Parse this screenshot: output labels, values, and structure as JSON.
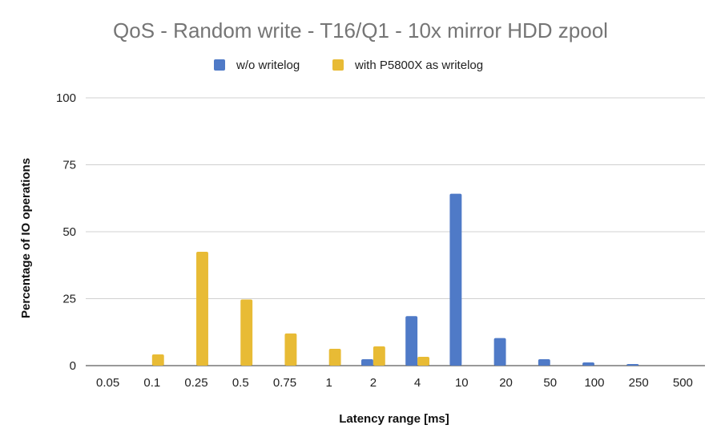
{
  "chart_data": {
    "type": "bar",
    "title": "QoS - Random write - T16/Q1 - 10x mirror HDD zpool",
    "xlabel": "Latency range [ms]",
    "ylabel": "Percentage of IO operations",
    "ylim": [
      0,
      100
    ],
    "yticks": [
      "0",
      "25",
      "50",
      "75",
      "100"
    ],
    "grid": true,
    "legend_position": "top",
    "categories": [
      "0.05",
      "0.1",
      "0.25",
      "0.5",
      "0.75",
      "1",
      "2",
      "4",
      "10",
      "20",
      "50",
      "100",
      "250",
      "500"
    ],
    "series": [
      {
        "name": "w/o writelog",
        "color": "#4f7ac7",
        "values": [
          0,
          0,
          0,
          0,
          0,
          0,
          2.4,
          18.5,
          64.2,
          10.3,
          2.4,
          1.2,
          0.6,
          0
        ]
      },
      {
        "name": "with P5800X as writelog",
        "color": "#e8bb35",
        "values": [
          0,
          4.2,
          42.5,
          24.7,
          12.0,
          6.3,
          7.2,
          3.3,
          0,
          0,
          0,
          0,
          0,
          0
        ]
      }
    ]
  }
}
